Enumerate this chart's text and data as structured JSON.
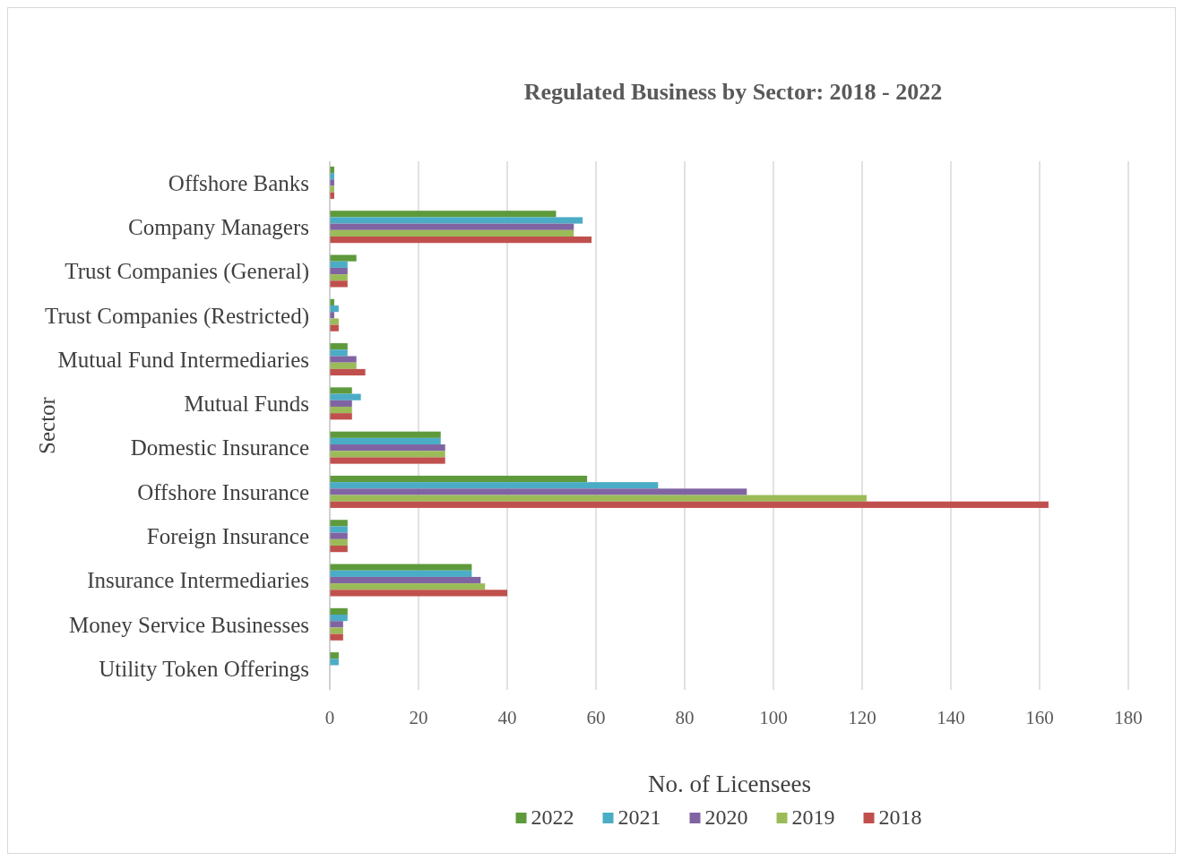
{
  "chart_data": {
    "type": "bar",
    "orientation": "horizontal",
    "title": "Regulated Business by Sector: 2018 - 2022",
    "xlabel": "No. of Licensees",
    "ylabel": "Sector",
    "categories": [
      "Offshore Banks",
      "Company Managers",
      "Trust Companies (General)",
      "Trust Companies (Restricted)",
      "Mutual Fund Intermediaries",
      "Mutual Funds",
      "Domestic Insurance",
      "Offshore Insurance",
      "Foreign Insurance",
      "Insurance Intermediaries",
      "Money Service Businesses",
      "Utility Token Offerings"
    ],
    "series": [
      {
        "name": "2022",
        "color": "#5e9a3c",
        "values": [
          1,
          51,
          6,
          1,
          4,
          5,
          25,
          58,
          4,
          32,
          4,
          2
        ]
      },
      {
        "name": "2021",
        "color": "#4bacc6",
        "values": [
          1,
          57,
          4,
          2,
          4,
          7,
          25,
          74,
          4,
          32,
          4,
          2
        ]
      },
      {
        "name": "2020",
        "color": "#8064a2",
        "values": [
          1,
          55,
          4,
          1,
          6,
          5,
          26,
          94,
          4,
          34,
          3,
          0
        ]
      },
      {
        "name": "2019",
        "color": "#9bbb59",
        "values": [
          1,
          55,
          4,
          2,
          6,
          5,
          26,
          121,
          4,
          35,
          3,
          0
        ]
      },
      {
        "name": "2018",
        "color": "#c0504d",
        "values": [
          1,
          59,
          4,
          2,
          8,
          5,
          26,
          162,
          4,
          40,
          3,
          0
        ]
      }
    ],
    "xlim": [
      0,
      180
    ],
    "xticks": [
      0,
      20,
      40,
      60,
      80,
      100,
      120,
      140,
      160,
      180
    ],
    "grid": "x",
    "legend": "bottom"
  }
}
